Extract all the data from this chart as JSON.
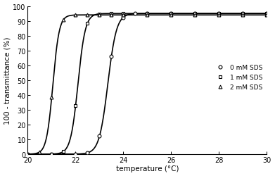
{
  "title": "",
  "xlabel": "temperature (°C)",
  "ylabel": "100 - transmittance (%)",
  "xlim": [
    20,
    30
  ],
  "ylim": [
    0,
    100
  ],
  "xticks": [
    20,
    22,
    24,
    26,
    28,
    30
  ],
  "yticks": [
    0,
    10,
    20,
    30,
    40,
    50,
    60,
    70,
    80,
    90,
    100
  ],
  "series": [
    {
      "label": "0 mM SDS",
      "marker": "o",
      "midpoint": 23.35,
      "steepness": 5.5,
      "max_val": 95
    },
    {
      "label": "1 mM SDS",
      "marker": "s",
      "midpoint": 22.1,
      "steepness": 6.5,
      "max_val": 95
    },
    {
      "label": "2 mM SDS",
      "marker": "^",
      "midpoint": 21.05,
      "steepness": 7.5,
      "max_val": 94
    }
  ],
  "marker_temperatures_0": [
    20.0,
    21.0,
    22.0,
    22.5,
    23.0,
    23.5,
    24.0,
    24.5,
    25.0,
    26.0,
    27.0,
    28.0,
    29.0,
    30.0
  ],
  "marker_temperatures_1": [
    20.0,
    21.0,
    21.5,
    22.0,
    22.5,
    23.0,
    23.5,
    24.0,
    25.0,
    26.0,
    27.0,
    28.0,
    29.0,
    30.0
  ],
  "marker_temperatures_2": [
    20.0,
    20.5,
    21.0,
    21.5,
    22.0,
    22.5,
    23.0,
    23.5,
    24.0,
    25.0,
    26.0,
    27.0,
    28.0,
    29.0,
    30.0
  ],
  "line_color": "black",
  "background_color": "white"
}
